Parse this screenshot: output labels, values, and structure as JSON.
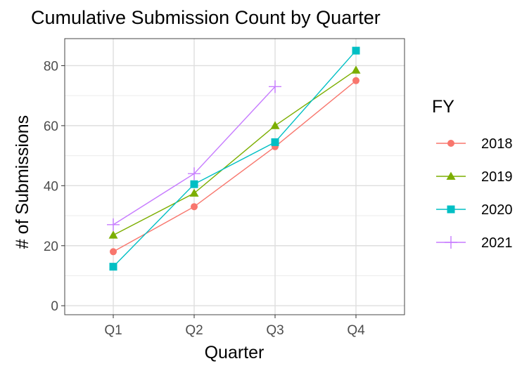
{
  "chart_data": {
    "type": "line",
    "title": "Cumulative Submission Count by Quarter",
    "xlabel": "Quarter",
    "ylabel": "# of Submissions",
    "categories": [
      "Q1",
      "Q2",
      "Q3",
      "Q4"
    ],
    "yticks": [
      0,
      20,
      40,
      60,
      80
    ],
    "ylim": [
      -3,
      89
    ],
    "grid": true,
    "legend": {
      "title": "FY",
      "placement": "right"
    },
    "series": [
      {
        "name": "2018",
        "color": "#F8766D",
        "marker": "circle",
        "values": [
          18,
          33,
          53,
          75
        ]
      },
      {
        "name": "2019",
        "color": "#7CAE00",
        "marker": "triangle",
        "values": [
          23.5,
          37.5,
          60,
          78.5
        ]
      },
      {
        "name": "2020",
        "color": "#00BFC4",
        "marker": "square",
        "values": [
          13,
          40.5,
          54.5,
          85
        ]
      },
      {
        "name": "2021",
        "color": "#C77CFF",
        "marker": "plus",
        "values": [
          27,
          44,
          73,
          null
        ]
      }
    ]
  }
}
